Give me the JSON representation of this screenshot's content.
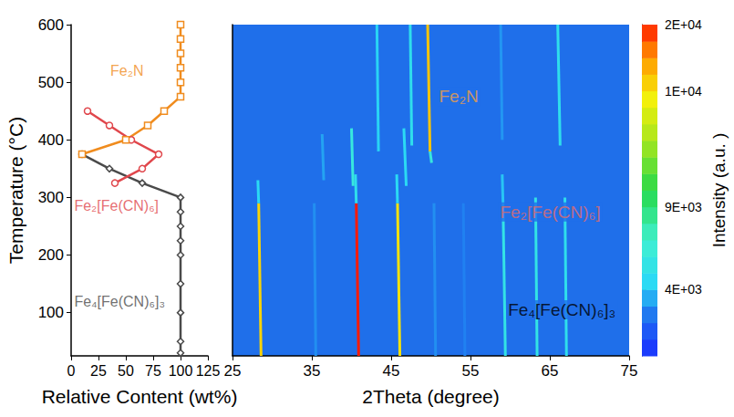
{
  "chart_data": [
    {
      "type": "line",
      "x_label": "Relative Content (wt%)",
      "y_label": "Temperature (°C)",
      "xlim": [
        0,
        125
      ],
      "xticks": [
        0,
        25,
        50,
        75,
        100,
        125
      ],
      "ylim": [
        25,
        600
      ],
      "yticks": [
        100,
        200,
        300,
        400,
        500,
        600
      ],
      "grid": false,
      "series": [
        {
          "name": "Fe₄[Fe(CN)₆]₃",
          "color": "#4a4a4a",
          "marker": "diamond",
          "label_at": [
            2,
            120
          ],
          "x": [
            100,
            100,
            100,
            100,
            100,
            100,
            100,
            100,
            100,
            65,
            35,
            10
          ],
          "y": [
            30,
            50,
            100,
            150,
            200,
            225,
            250,
            275,
            300,
            325,
            350,
            375
          ]
        },
        {
          "name": "Fe₂[Fe(CN)₆]",
          "color": "#e0474c",
          "marker": "circle",
          "label_at": [
            2,
            285
          ],
          "x": [
            40,
            65,
            80,
            55,
            35,
            15
          ],
          "y": [
            325,
            350,
            375,
            400,
            425,
            450
          ]
        },
        {
          "name": "Fe₂N",
          "color": "#f08c1e",
          "marker": "square",
          "label_at": [
            35,
            520
          ],
          "x": [
            10,
            50,
            70,
            85,
            100,
            100,
            100,
            100,
            100,
            100
          ],
          "y": [
            375,
            400,
            425,
            450,
            475,
            500,
            525,
            550,
            575,
            600
          ]
        }
      ]
    },
    {
      "type": "contour",
      "x_label": "2Theta (degree)",
      "xlim": [
        25,
        75
      ],
      "xticks": [
        25,
        35,
        45,
        55,
        65,
        75
      ],
      "ylim": [
        25,
        600
      ],
      "tick_labels": "x",
      "grid": false,
      "peaks": [
        {
          "x": [
            28.6,
            28.3
          ],
          "y": [
            25,
            290
          ],
          "intensity": 11000
        },
        {
          "x": [
            28.3,
            28.2
          ],
          "y": [
            290,
            330
          ],
          "intensity": 4500
        },
        {
          "x": [
            40.9,
            40.6
          ],
          "y": [
            25,
            290
          ],
          "intensity": 20000
        },
        {
          "x": [
            40.6,
            40.5
          ],
          "y": [
            290,
            340
          ],
          "intensity": 5000
        },
        {
          "x": [
            46.1,
            45.8
          ],
          "y": [
            25,
            290
          ],
          "intensity": 10000
        },
        {
          "x": [
            45.8,
            45.7
          ],
          "y": [
            290,
            340
          ],
          "intensity": 4500
        },
        {
          "x": [
            59.4,
            59.1
          ],
          "y": [
            25,
            290
          ],
          "intensity": 5500
        },
        {
          "x": [
            59.1,
            59.0
          ],
          "y": [
            290,
            340
          ],
          "intensity": 4000
        },
        {
          "x": [
            63.4,
            63.2
          ],
          "y": [
            25,
            300
          ],
          "intensity": 5500
        },
        {
          "x": [
            67.1,
            66.9
          ],
          "y": [
            25,
            300
          ],
          "intensity": 5000
        },
        {
          "x": [
            35.5,
            35.3
          ],
          "y": [
            25,
            290
          ],
          "intensity": 3200
        },
        {
          "x": [
            50.6,
            50.4
          ],
          "y": [
            25,
            290
          ],
          "intensity": 3200
        },
        {
          "x": [
            54.3,
            54.1
          ],
          "y": [
            25,
            290
          ],
          "intensity": 3000
        },
        {
          "x": [
            40.2,
            40.0
          ],
          "y": [
            320,
            420
          ],
          "intensity": 6000
        },
        {
          "x": [
            46.9,
            46.6
          ],
          "y": [
            320,
            420
          ],
          "intensity": 4500
        },
        {
          "x": [
            36.5,
            36.3
          ],
          "y": [
            330,
            410
          ],
          "intensity": 3500
        },
        {
          "x": [
            50.1,
            49.9
          ],
          "y": [
            360,
            380
          ],
          "intensity": 6000
        },
        {
          "x": [
            49.9,
            49.6
          ],
          "y": [
            380,
            600
          ],
          "intensity": 12000
        },
        {
          "x": [
            47.6,
            47.4
          ],
          "y": [
            390,
            600
          ],
          "intensity": 5000
        },
        {
          "x": [
            43.4,
            43.2
          ],
          "y": [
            380,
            600
          ],
          "intensity": 4300
        },
        {
          "x": [
            66.3,
            66.0
          ],
          "y": [
            390,
            600
          ],
          "intensity": 5000
        },
        {
          "x": [
            59.0,
            58.8
          ],
          "y": [
            400,
            600
          ],
          "intensity": 3300
        }
      ],
      "annotations": [
        {
          "text": "Fe₂N",
          "x": 50.8,
          "y": 475,
          "color": "#f4a042"
        },
        {
          "text": "Fe₂[Fe(CN)₆]",
          "x": 58.5,
          "y": 275,
          "color": "#e36b6b"
        },
        {
          "text": "Fe₄[Fe(CN)₆]₃",
          "x": 59.5,
          "y": 105,
          "color": "#000000"
        }
      ],
      "colorbar": {
        "title": "Intensity (a.u. )",
        "levels": [
          1000,
          1750,
          2500,
          3250,
          4000,
          5000,
          6000,
          7000,
          8000,
          9000,
          9150,
          9300,
          9400,
          9550,
          9700,
          9850,
          10000,
          12500,
          15000,
          17500,
          20000
        ],
        "ticks": [
          {
            "value": 4000,
            "label": "4E+03"
          },
          {
            "value": 9000,
            "label": "9E+03"
          },
          {
            "value": 10000,
            "label": "1E+04"
          },
          {
            "value": 20000,
            "label": "2E+04"
          }
        ]
      }
    }
  ]
}
